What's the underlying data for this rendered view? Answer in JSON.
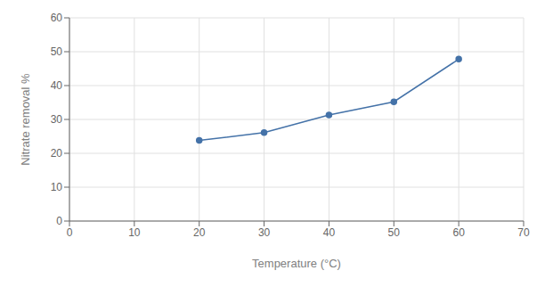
{
  "chart_data": {
    "type": "line",
    "x": [
      20,
      30,
      40,
      50,
      60
    ],
    "values": [
      23.8,
      26.1,
      31.3,
      35.2,
      47.8
    ],
    "color": "#4472a8",
    "marker": "o",
    "xlabel": "Temperature (°C)",
    "ylabel": "Nitrate removal %",
    "xlim": [
      0,
      70
    ],
    "ylim": [
      0,
      60
    ],
    "xticks": [
      0,
      10,
      20,
      30,
      40,
      50,
      60,
      70
    ],
    "yticks": [
      0,
      10,
      20,
      30,
      40,
      50,
      60
    ],
    "grid": true
  }
}
